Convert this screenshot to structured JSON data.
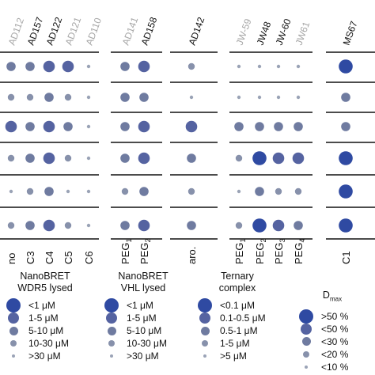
{
  "chart_data": {
    "type": "dot-matrix",
    "compounds": [
      {
        "name": "AD112",
        "highlight": false
      },
      {
        "name": "AD157",
        "highlight": true
      },
      {
        "name": "AD122",
        "highlight": true
      },
      {
        "name": "AD121",
        "highlight": false
      },
      {
        "name": "AD110",
        "highlight": false
      },
      {
        "name": "AD141",
        "highlight": false
      },
      {
        "name": "AD158",
        "highlight": true
      },
      {
        "name": "AD142",
        "highlight": true
      },
      {
        "name": "JW-59",
        "highlight": false
      },
      {
        "name": "JW48",
        "highlight": true
      },
      {
        "name": "JW-60",
        "highlight": true
      },
      {
        "name": "JW61",
        "highlight": false
      },
      {
        "name": "MS67",
        "highlight": true
      }
    ],
    "linkers": [
      {
        "label": "no",
        "sub": ""
      },
      {
        "label": "C3",
        "sub": ""
      },
      {
        "label": "C4",
        "sub": ""
      },
      {
        "label": "C5",
        "sub": ""
      },
      {
        "label": "C6",
        "sub": ""
      },
      {
        "label": "PEG",
        "sub": "1"
      },
      {
        "label": "PEG",
        "sub": "2"
      },
      {
        "label": "aro.",
        "sub": ""
      },
      {
        "label": "PEG",
        "sub": "1"
      },
      {
        "label": "PEG",
        "sub": "2"
      },
      {
        "label": "PEG",
        "sub": "3"
      },
      {
        "label": "PEG",
        "sub": "4"
      },
      {
        "label": "C1",
        "sub": ""
      }
    ],
    "rows": 6,
    "size_level_scale": "1 = smallest dot, 5 = largest dot (see legends)",
    "values": [
      [
        3,
        3,
        4,
        4,
        1,
        3,
        4,
        2,
        1,
        1,
        1,
        1,
        5
      ],
      [
        2,
        2,
        3,
        2,
        1,
        3,
        3,
        1,
        1,
        1,
        1,
        1,
        3
      ],
      [
        4,
        3,
        4,
        3,
        1,
        3,
        4,
        4,
        3,
        3,
        3,
        3,
        3
      ],
      [
        2,
        3,
        4,
        2,
        1,
        3,
        4,
        3,
        2,
        5,
        4,
        4,
        5
      ],
      [
        1,
        2,
        3,
        1,
        1,
        2,
        3,
        2,
        1,
        3,
        2,
        2,
        5
      ],
      [
        2,
        3,
        4,
        2,
        1,
        3,
        4,
        3,
        2,
        5,
        4,
        3,
        5
      ]
    ],
    "dot_colors": {
      "1": "#9aa3b6",
      "2": "#8791ab",
      "3": "#6f7ba0",
      "4": "#5563a1",
      "5": "#2f4aa2"
    }
  },
  "legends": [
    {
      "title": [
        "NanoBRET",
        "WDR5 lysed"
      ],
      "items": [
        "<1 μM",
        "1-5 μM",
        "5-10 μM",
        "10-30 μM",
        ">30 μM"
      ]
    },
    {
      "title": [
        "NanoBRET",
        "VHL lysed"
      ],
      "items": [
        "<1 μM",
        "1-5 μM",
        "5-10 μM",
        "10-30 μM",
        ">30 μM"
      ]
    },
    {
      "title": [
        "Ternary",
        "complex"
      ],
      "items": [
        "<0.1 μM",
        "0.1-0.5 μM",
        "0.5-1 μM",
        "1-5 μM",
        ">5 μM"
      ]
    },
    {
      "title_main": "D",
      "title_sub": "max",
      "items": [
        ">50 %",
        "<50 %",
        "<30 %",
        "<20 %",
        "<10 %"
      ]
    }
  ]
}
